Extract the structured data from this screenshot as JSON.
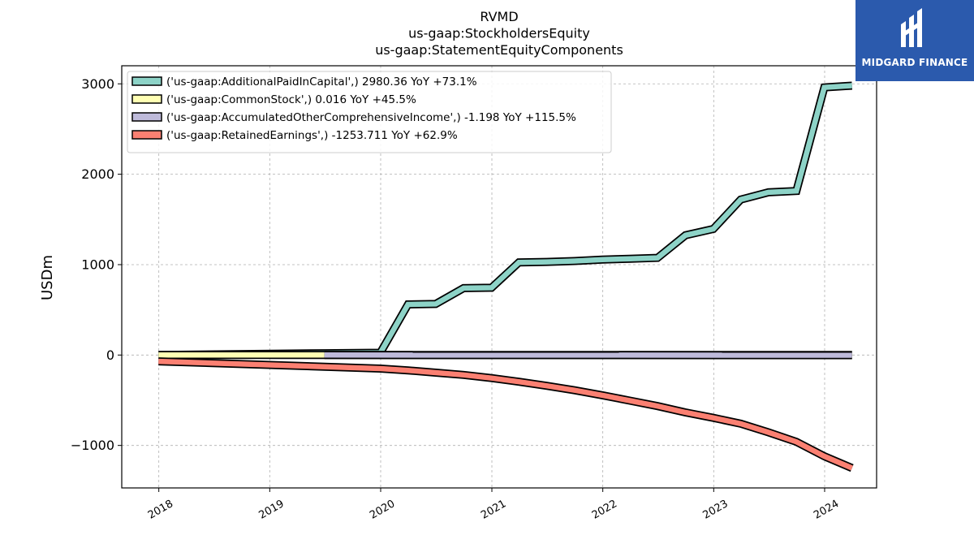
{
  "logo": {
    "text": "MIDGARD FINANCE"
  },
  "chart_data": {
    "type": "line",
    "title": [
      "RVMD",
      "us-gaap:StockholdersEquity",
      "us-gaap:StatementEquityComponents"
    ],
    "xlabel": "",
    "ylabel": "USDm",
    "xlim": [
      "2017-09-01",
      "2024-06-20"
    ],
    "ylim": [
      -1470,
      3200
    ],
    "yticks": [
      3000,
      2000,
      1000,
      0,
      -1000
    ],
    "ytick_labels": [
      "3000",
      "2000",
      "1000",
      "0",
      "−1000"
    ],
    "xticks": [
      "2018-01-01",
      "2019-01-01",
      "2020-01-01",
      "2021-01-01",
      "2022-01-01",
      "2023-01-01",
      "2024-01-01"
    ],
    "xtick_labels": [
      "2018",
      "2019",
      "2020",
      "2021",
      "2022",
      "2023",
      "2024"
    ],
    "grid": true,
    "legend_position": "top-left",
    "series": [
      {
        "name": "('us-gaap:AdditionalPaidInCapital',) 2980.36 YoY +73.1%",
        "color": "#8dd3c7",
        "x": [
          "2017-12-31",
          "2019-06-30",
          "2019-12-31",
          "2020-03-31",
          "2020-06-30",
          "2020-09-30",
          "2020-12-31",
          "2021-03-31",
          "2021-06-30",
          "2021-09-30",
          "2021-12-31",
          "2022-03-31",
          "2022-06-30",
          "2022-09-30",
          "2022-12-31",
          "2023-03-31",
          "2023-06-30",
          "2023-09-30",
          "2023-12-31",
          "2024-03-31"
        ],
        "values": [
          0,
          20,
          25,
          560,
          565,
          740,
          745,
          1025,
          1030,
          1040,
          1055,
          1065,
          1075,
          1325,
          1395,
          1720,
          1800,
          1815,
          2960,
          2980
        ]
      },
      {
        "name": "('us-gaap:CommonStock',) 0.016 YoY +45.5%",
        "color": "#ffffb3",
        "x": [
          "2017-12-31",
          "2024-03-31"
        ],
        "values": [
          0.01,
          0.016
        ]
      },
      {
        "name": "('us-gaap:AccumulatedOtherComprehensiveIncome',) -1.198 YoY +115.5%",
        "color": "#bebada",
        "x": [
          "2019-06-30",
          "2024-03-31"
        ],
        "values": [
          0,
          -1.198
        ]
      },
      {
        "name": "('us-gaap:RetainedEarnings',) -1253.711 YoY +62.9%",
        "color": "#fb8072",
        "x": [
          "2017-12-31",
          "2019-12-31",
          "2020-03-31",
          "2020-06-30",
          "2020-09-30",
          "2020-12-31",
          "2021-03-31",
          "2021-06-30",
          "2021-09-30",
          "2021-12-31",
          "2022-03-31",
          "2022-06-30",
          "2022-09-30",
          "2022-12-31",
          "2023-03-31",
          "2023-06-30",
          "2023-09-30",
          "2023-12-31",
          "2024-03-31"
        ],
        "values": [
          -70,
          -150,
          -170,
          -195,
          -220,
          -255,
          -295,
          -340,
          -390,
          -445,
          -505,
          -565,
          -635,
          -695,
          -760,
          -855,
          -960,
          -1120,
          -1250
        ]
      }
    ]
  }
}
